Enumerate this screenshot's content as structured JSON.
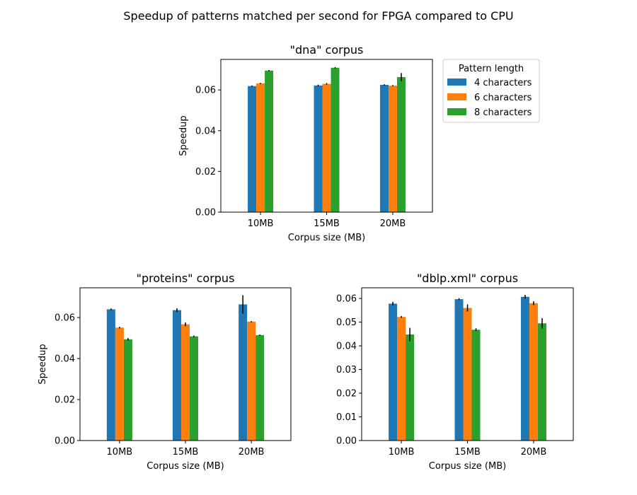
{
  "figure": {
    "title": "Speedup of patterns matched per second for FPGA compared to CPU"
  },
  "legend": {
    "title": "Pattern length",
    "placement": "outside right of top panel",
    "entries": [
      "4 characters",
      "6 characters",
      "8 characters"
    ]
  },
  "colors": {
    "4 characters": "#1f77b4",
    "6 characters": "#ff7f0e",
    "8 characters": "#2ca02c",
    "errorbar": "#000000"
  },
  "chart_data": [
    {
      "type": "bar",
      "title": "\"dna\" corpus",
      "xlabel": "Corpus size (MB)",
      "ylabel": "Speedup",
      "categories": [
        "10MB",
        "15MB",
        "20MB"
      ],
      "ylim": [
        0,
        0.075
      ],
      "yticks": [
        0.0,
        0.02,
        0.04,
        0.06
      ],
      "yticklabels": [
        "0.00",
        "0.02",
        "0.04",
        "0.06"
      ],
      "grid": false,
      "series": [
        {
          "name": "4 characters",
          "values": [
            0.0619,
            0.0622,
            0.0625
          ],
          "errors": [
            0.0003,
            0.0004,
            0.0003
          ]
        },
        {
          "name": "6 characters",
          "values": [
            0.0632,
            0.063,
            0.0621
          ],
          "errors": [
            0.0003,
            0.0004,
            0.0003
          ]
        },
        {
          "name": "8 characters",
          "values": [
            0.0695,
            0.0709,
            0.0663
          ],
          "errors": [
            0.0003,
            0.0003,
            0.002
          ]
        }
      ]
    },
    {
      "type": "bar",
      "title": "\"proteins\" corpus",
      "xlabel": "Corpus size (MB)",
      "ylabel": "Speedup",
      "categories": [
        "10MB",
        "15MB",
        "20MB"
      ],
      "ylim": [
        0,
        0.0745
      ],
      "yticks": [
        0.0,
        0.02,
        0.04,
        0.06
      ],
      "yticklabels": [
        "0.00",
        "0.02",
        "0.04",
        "0.06"
      ],
      "grid": false,
      "series": [
        {
          "name": "4 characters",
          "values": [
            0.064,
            0.0636,
            0.0664
          ],
          "errors": [
            0.0004,
            0.0009,
            0.0045
          ]
        },
        {
          "name": "6 characters",
          "values": [
            0.0551,
            0.0567,
            0.058
          ],
          "errors": [
            0.0004,
            0.0009,
            0.0003
          ]
        },
        {
          "name": "8 characters",
          "values": [
            0.0494,
            0.0508,
            0.0514
          ],
          "errors": [
            0.0006,
            0.0004,
            0.0003
          ]
        }
      ]
    },
    {
      "type": "bar",
      "title": "\"dblp.xml\" corpus",
      "xlabel": "Corpus size (MB)",
      "ylabel": "",
      "categories": [
        "10MB",
        "15MB",
        "20MB"
      ],
      "ylim": [
        0,
        0.0645
      ],
      "yticks": [
        0.0,
        0.01,
        0.02,
        0.03,
        0.04,
        0.05,
        0.06
      ],
      "yticklabels": [
        "0.00",
        "0.01",
        "0.02",
        "0.03",
        "0.04",
        "0.05",
        "0.06"
      ],
      "grid": false,
      "series": [
        {
          "name": "4 characters",
          "values": [
            0.0578,
            0.0597,
            0.0607
          ],
          "errors": [
            0.0008,
            0.0004,
            0.0008
          ]
        },
        {
          "name": "6 characters",
          "values": [
            0.0522,
            0.056,
            0.058
          ],
          "errors": [
            0.0004,
            0.0015,
            0.0008
          ]
        },
        {
          "name": "8 characters",
          "values": [
            0.0448,
            0.0468,
            0.0495
          ],
          "errors": [
            0.0028,
            0.0006,
            0.0022
          ]
        }
      ]
    }
  ]
}
